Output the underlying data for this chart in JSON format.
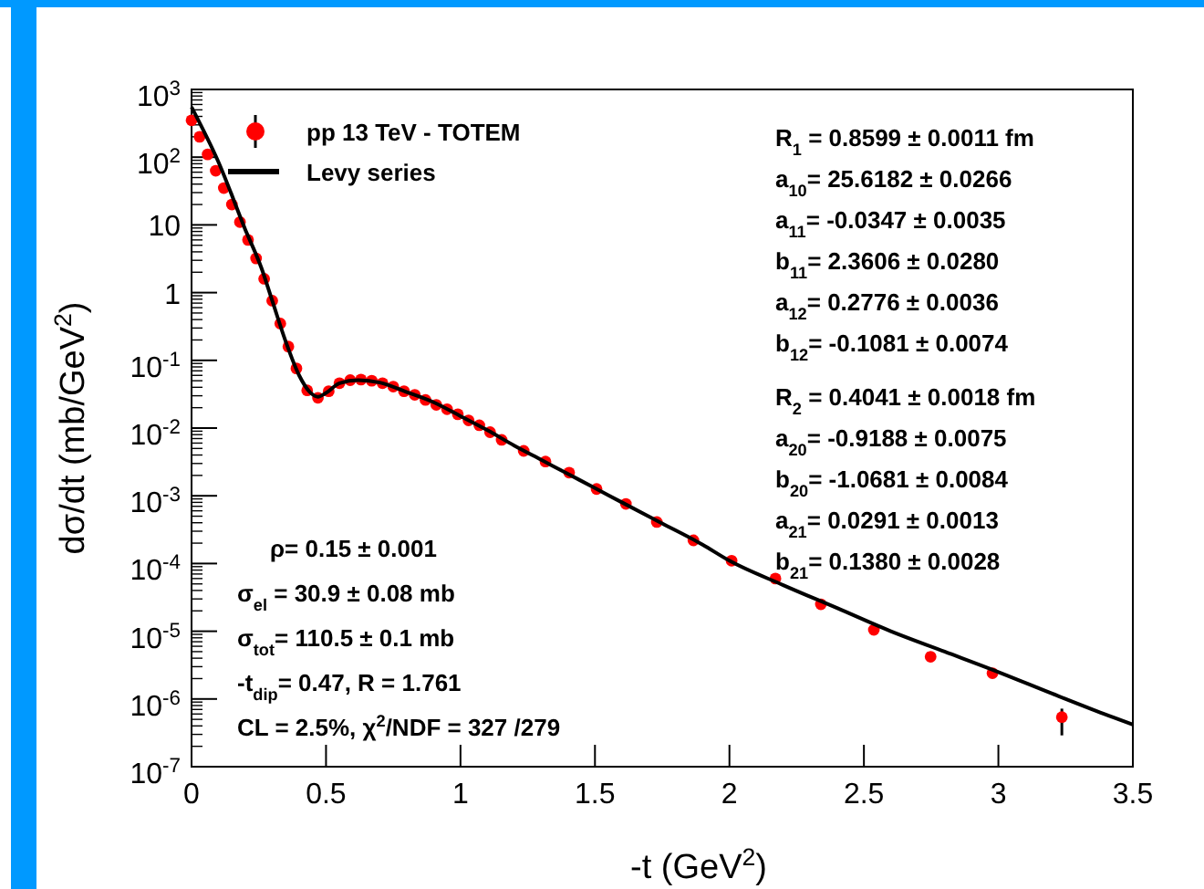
{
  "chart_data": {
    "type": "scatter",
    "xlabel": "-t (GeV$^{2}$)",
    "ylabel": "dσ/dt (mb/GeV$^{2}$)",
    "log": "y",
    "xlim": [
      0,
      3.5
    ],
    "xticks": [
      0,
      0.5,
      1,
      1.5,
      2,
      2.5,
      3,
      3.5
    ],
    "ylim": [
      1e-07,
      1000
    ],
    "yticks": [
      {
        "value": 1e-07,
        "label": "10$^{-7}$"
      },
      {
        "value": 1e-06,
        "label": "10$^{-6}$"
      },
      {
        "value": 1e-05,
        "label": "10$^{-5}$"
      },
      {
        "value": 0.0001,
        "label": "10$^{-4}$"
      },
      {
        "value": 0.001,
        "label": "10$^{-3}$"
      },
      {
        "value": 0.01,
        "label": "10$^{-2}$"
      },
      {
        "value": 0.1,
        "label": "10$^{-1}$"
      },
      {
        "value": 1,
        "label": "1"
      },
      {
        "value": 10,
        "label": "10"
      },
      {
        "value": 100,
        "label": "10$^{2}$"
      },
      {
        "value": 1000,
        "label": "10$^{3}$"
      }
    ],
    "legend": "top left",
    "series": [
      {
        "name": "pp 13 TeV - TOTEM",
        "marker": "circle",
        "color": "#ff0000",
        "x": [
          0,
          0.03,
          0.06,
          0.09,
          0.12,
          0.15,
          0.18,
          0.21,
          0.24,
          0.27,
          0.3,
          0.33,
          0.36,
          0.39,
          0.43,
          0.47,
          0.51,
          0.55,
          0.59,
          0.63,
          0.67,
          0.71,
          0.75,
          0.79,
          0.83,
          0.87,
          0.91,
          0.95,
          0.99,
          1.03,
          1.07,
          1.11,
          1.153,
          1.235,
          1.316,
          1.404,
          1.506,
          1.615,
          1.73,
          1.866,
          2.008,
          2.171,
          2.34,
          2.537,
          2.748,
          2.978,
          3.236
        ],
        "values": [
          350,
          200,
          110,
          63,
          35,
          20,
          11,
          6.0,
          3.2,
          1.6,
          0.76,
          0.35,
          0.16,
          0.076,
          0.036,
          0.028,
          0.035,
          0.046,
          0.051,
          0.052,
          0.05,
          0.046,
          0.041,
          0.035,
          0.031,
          0.026,
          0.022,
          0.019,
          0.016,
          0.013,
          0.011,
          0.0087,
          0.0067,
          0.0046,
          0.0032,
          0.0022,
          0.00126,
          0.00076,
          0.00041,
          0.00022,
          0.00011,
          6e-05,
          2.5e-05,
          1.05e-05,
          4.2e-06,
          2.4e-06,
          5.4e-07
        ],
        "errors": [
          null,
          null,
          null,
          null,
          null,
          null,
          null,
          null,
          null,
          null,
          null,
          null,
          null,
          null,
          null,
          null,
          null,
          null,
          null,
          null,
          null,
          null,
          null,
          null,
          null,
          null,
          null,
          null,
          null,
          null,
          null,
          null,
          null,
          null,
          null,
          null,
          null,
          null,
          null,
          null,
          null,
          null,
          null,
          null,
          null,
          null,
          [
            2.9e-07,
            7.2e-07
          ]
        ]
      },
      {
        "name": "Levy series",
        "type": "line",
        "marker": "none",
        "line_style": "solid",
        "color": "#000000",
        "x": [
          0,
          0.1,
          0.2,
          0.26,
          0.3,
          0.35,
          0.4,
          0.44,
          0.47,
          0.5,
          0.55,
          0.62,
          0.7,
          0.8,
          0.9,
          1.0,
          1.1,
          1.2,
          1.3,
          1.4,
          1.5,
          1.6,
          1.75,
          1.9,
          2.0,
          2.2,
          2.4,
          2.6,
          2.8,
          3.0,
          3.2,
          3.35,
          3.5
        ],
        "values": [
          550,
          85,
          8.5,
          2.3,
          0.76,
          0.19,
          0.06,
          0.034,
          0.029,
          0.033,
          0.046,
          0.051,
          0.047,
          0.034,
          0.024,
          0.015,
          0.0093,
          0.0055,
          0.0034,
          0.0021,
          0.0013,
          0.0008,
          0.00039,
          0.00019,
          0.00011,
          4.8e-05,
          2.2e-05,
          1e-05,
          5e-06,
          2.5e-06,
          1.2e-06,
          7e-07,
          4.2e-07
        ]
      }
    ],
    "annotations": [
      "R$_{1}$ = 0.8599 ± 0.0011 fm",
      "a$_{10}$= 25.6182 ± 0.0266",
      "a$_{11}$= -0.0347 ± 0.0035",
      "b$_{11}$= 2.3606 ± 0.0280",
      "a$_{12}$= 0.2776 ± 0.0036",
      "b$_{12}$= -0.1081 ± 0.0074",
      "R$_{2}$ = 0.4041 ± 0.0018 fm",
      "a$_{20}$= -0.9188 ± 0.0075",
      "b$_{20}$= -1.0681 ± 0.0084",
      "a$_{21}$= 0.0291 ± 0.0013",
      "b$_{21}$= 0.1380 ± 0.0028",
      "ρ= 0.15 ± 0.001",
      "σ$_{el}$ = 30.9 ± 0.08 mb",
      "σ$_{tot}$= 110.5 ± 0.1 mb",
      "-t$_{dip}$= 0.47,  R = 1.761",
      "CL = 2.5%,  χ$^{2}$/NDF = 327 /279"
    ]
  }
}
